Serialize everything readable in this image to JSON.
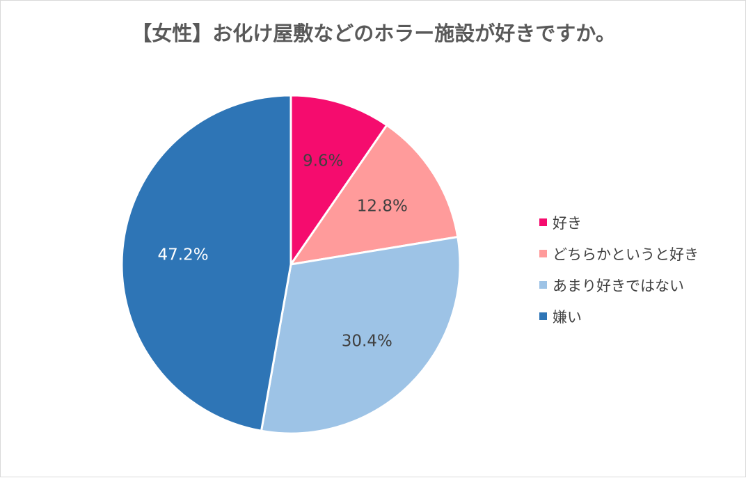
{
  "chart_data": {
    "type": "pie",
    "title": "【女性】お化け屋敷などのホラー施設が好きですか。",
    "categories": [
      "好き",
      "どちらかというと好き",
      "あまり好きではない",
      "嫌い"
    ],
    "values": [
      9.6,
      12.8,
      30.4,
      47.2
    ],
    "labels": [
      "9.6%",
      "12.8%",
      "30.4%",
      "47.2%"
    ],
    "colors": [
      "#f50c6e",
      "#ff9b9b",
      "#9dc3e6",
      "#2e75b6"
    ],
    "label_colors": [
      "#404040",
      "#404040",
      "#404040",
      "#ffffff"
    ],
    "legend_position": "right"
  }
}
